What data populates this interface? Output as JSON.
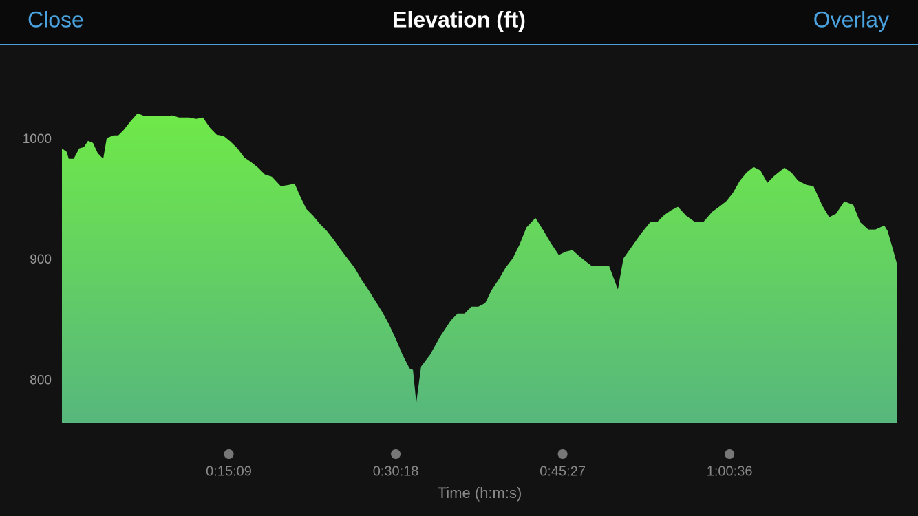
{
  "header": {
    "left": "Close",
    "title": "Elevation (ft)",
    "right": "Overlay"
  },
  "chart_data": {
    "type": "area",
    "x_label": "Time (h:m:s)",
    "x": [
      0,
      26,
      37,
      64,
      94,
      120,
      142,
      169,
      195,
      225,
      244,
      281,
      307,
      337,
      375,
      412,
      450,
      506,
      562,
      600,
      637,
      693,
      731,
      768,
      806,
      843,
      881,
      918,
      956,
      993,
      1031,
      1068,
      1106,
      1143,
      1192,
      1237,
      1267,
      1293,
      1331,
      1368,
      1406,
      1443,
      1481,
      1518,
      1555,
      1593,
      1630,
      1668,
      1705,
      1743,
      1780,
      1818,
      1855,
      1893,
      1912,
      1930,
      1956,
      2005,
      2061,
      2118,
      2155,
      2193,
      2230,
      2268,
      2305,
      2342,
      2380,
      2417,
      2455,
      2492,
      2530,
      2579,
      2624,
      2661,
      2706,
      2744,
      2781,
      2819,
      2856,
      2886,
      2923,
      2980,
      3028,
      3058,
      3111,
      3156,
      3205,
      3242,
      3280,
      3317,
      3355,
      3400,
      3448,
      3493,
      3542,
      3579,
      3617,
      3654,
      3692,
      3729,
      3767,
      3804,
      3842,
      3879,
      3935,
      3973,
      4010,
      4055,
      4093,
      4141,
      4179,
      4216,
      4261,
      4310,
      4347,
      4392,
      4430,
      4479,
      4497,
      4524,
      4550
    ],
    "values": [
      992.6,
      989.7,
      984,
      984,
      992.6,
      993.7,
      998.9,
      997.2,
      988.6,
      984,
      1001.1,
      1003.4,
      1003.4,
      1008,
      1015.4,
      1021.7,
      1019.4,
      1019.4,
      1019.4,
      1020,
      1018.2,
      1018.2,
      1017.1,
      1018.2,
      1009.7,
      1004,
      1002.8,
      998.3,
      992.6,
      985.2,
      981.2,
      976.6,
      970.9,
      969.2,
      961.3,
      962.4,
      963.5,
      954.4,
      942.5,
      936.8,
      929.9,
      924.2,
      916.8,
      908.8,
      901.4,
      894,
      884.3,
      875.8,
      866.7,
      857.5,
      847.3,
      834.8,
      821.7,
      810.3,
      809.1,
      781.8,
      811.9,
      821.7,
      837,
      850.1,
      855.8,
      855.8,
      861.5,
      861.5,
      864.4,
      875.8,
      884.3,
      894,
      901.4,
      912.8,
      927.1,
      935,
      924.2,
      914.5,
      904.3,
      907.1,
      908.3,
      903.1,
      898.6,
      895.2,
      895.2,
      895.2,
      875.8,
      901.4,
      912.8,
      922.5,
      931.6,
      931.6,
      937.3,
      941.3,
      944.2,
      936.8,
      931.6,
      931.6,
      940.2,
      944.2,
      948.7,
      955.6,
      965.8,
      972.6,
      977.2,
      974.4,
      964.1,
      969.8,
      976.6,
      972.6,
      965.8,
      962.4,
      961.3,
      945.3,
      935.6,
      938.5,
      948.7,
      945.9,
      931.6,
      925.4,
      925.4,
      928.8,
      924.2,
      910,
      895.7
    ],
    "xlim": [
      0,
      4550
    ],
    "ylim": [
      765,
      1058
    ],
    "xticks": [
      {
        "value": 909,
        "label": "0:15:09"
      },
      {
        "value": 1818,
        "label": "0:30:18"
      },
      {
        "value": 2727,
        "label": "0:45:27"
      },
      {
        "value": 3636,
        "label": "1:00:36"
      }
    ],
    "yticks": [
      800,
      900,
      1000
    ],
    "colors": [
      "#6fe948",
      "#57b77d"
    ]
  }
}
